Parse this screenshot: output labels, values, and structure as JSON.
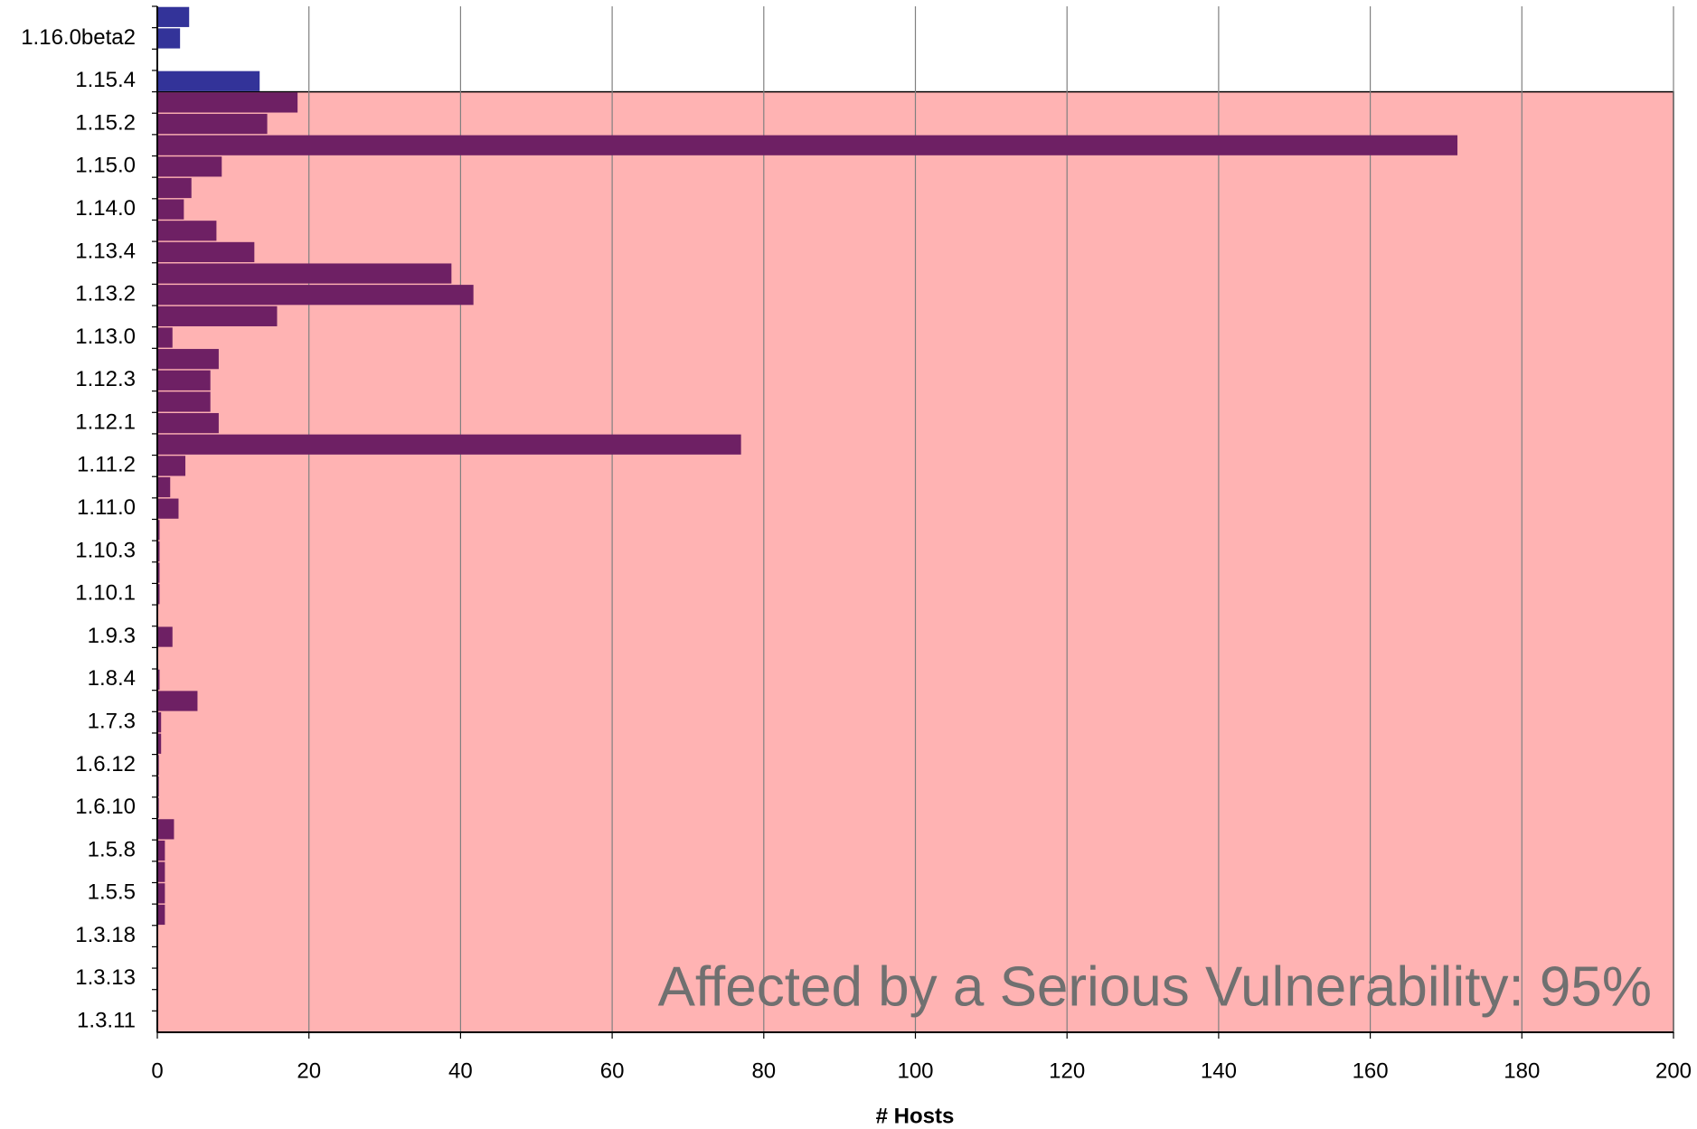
{
  "chart_data": {
    "type": "barh",
    "categories": [
      null,
      "1.16.0beta2",
      null,
      "1.15.4",
      null,
      "1.15.2",
      null,
      "1.15.0",
      null,
      "1.14.0",
      null,
      "1.13.4",
      null,
      "1.13.2",
      null,
      "1.13.0",
      null,
      "1.12.3",
      null,
      "1.12.1",
      null,
      "1.11.2",
      null,
      "1.11.0",
      null,
      "1.10.3",
      null,
      "1.10.1",
      null,
      "1.9.3",
      null,
      "1.8.4",
      null,
      "1.7.3",
      null,
      "1.6.12",
      null,
      "1.6.10",
      null,
      "1.5.8",
      null,
      "1.5.5",
      null,
      "1.3.18",
      null,
      "1.3.13",
      null,
      "1.3.11"
    ],
    "values": [
      4.2,
      3,
      0,
      13.5,
      18.5,
      14.5,
      171.5,
      8.5,
      4.5,
      3.5,
      7.8,
      12.8,
      38.8,
      41.7,
      15.8,
      2,
      8.1,
      7,
      7,
      8.1,
      77,
      3.7,
      1.7,
      2.8,
      0.3,
      0.3,
      0.3,
      0.3,
      0,
      2,
      0,
      0.3,
      5.3,
      0.5,
      0.5,
      0.2,
      0.2,
      0.2,
      2.2,
      1,
      1,
      1,
      1,
      0,
      0,
      0,
      0,
      0
    ],
    "colors": [
      "#333399",
      "#333399",
      "#333399",
      "#333399",
      "#6e2064",
      "#6e2064",
      "#6e2064",
      "#6e2064",
      "#6e2064",
      "#6e2064",
      "#6e2064",
      "#6e2064",
      "#6e2064",
      "#6e2064",
      "#6e2064",
      "#6e2064",
      "#6e2064",
      "#6e2064",
      "#6e2064",
      "#6e2064",
      "#6e2064",
      "#6e2064",
      "#6e2064",
      "#6e2064",
      "#6e2064",
      "#6e2064",
      "#6e2064",
      "#6e2064",
      "#6e2064",
      "#6e2064",
      "#6e2064",
      "#6e2064",
      "#6e2064",
      "#6e2064",
      "#6e2064",
      "#6e2064",
      "#6e2064",
      "#6e2064",
      "#6e2064",
      "#6e2064",
      "#6e2064",
      "#6e2064",
      "#6e2064",
      "#6e2064",
      "#6e2064",
      "#6e2064",
      "#6e2064",
      "#6e2064"
    ],
    "highlight_color": "#ffb3b3",
    "annotation": "Affected by a Serious Vulnerability: 95%",
    "x_label": "# Hosts",
    "xlim": [
      0,
      200
    ],
    "xticks": [
      0,
      20,
      40,
      60,
      80,
      100,
      120,
      140,
      160,
      180,
      200
    ],
    "grid": true
  }
}
